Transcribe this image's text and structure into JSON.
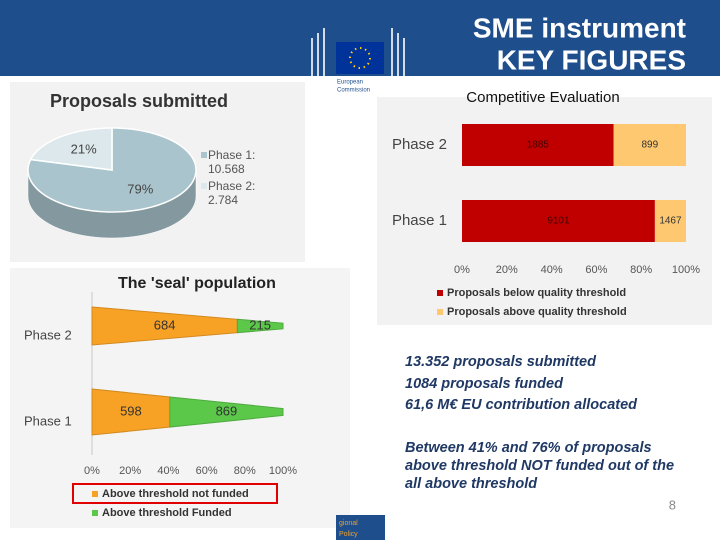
{
  "header": {
    "title_lines": [
      "SME instrument",
      "KEY FIGURES"
    ],
    "logo_text": [
      "European",
      "Commission"
    ]
  },
  "chart_data": [
    {
      "type": "pie",
      "title": "Proposals submitted",
      "categories": [
        "Phase 1: 10.568",
        "Phase 2: 2.784"
      ],
      "values": [
        79,
        21
      ],
      "value_labels": [
        "79%",
        "21%"
      ],
      "colors": [
        "#a9c4cc",
        "#dce8ec"
      ],
      "legend": "right"
    },
    {
      "type": "bar",
      "orientation": "horizontal",
      "stack": "percent",
      "title": "Competitive Evaluation",
      "categories": [
        "Phase 2",
        "Phase 1"
      ],
      "series": [
        {
          "name": "Proposals below quality threshold",
          "color": "#c00000",
          "values": [
            1885,
            9101
          ]
        },
        {
          "name": "Proposals above quality threshold",
          "color": "#fdc870",
          "values": [
            899,
            1467
          ]
        }
      ],
      "xlim": [
        0,
        100
      ],
      "xticks": [
        {
          "value": 0,
          "label": "0%"
        },
        {
          "value": 20,
          "label": "20%"
        },
        {
          "value": 40,
          "label": "40%"
        },
        {
          "value": 60,
          "label": "60%"
        },
        {
          "value": 80,
          "label": "80%"
        },
        {
          "value": 100,
          "label": "100%"
        }
      ],
      "legend": "bottom"
    },
    {
      "type": "cone",
      "orientation": "horizontal",
      "stack": "percent",
      "title": "The 'seal' population",
      "categories": [
        "Phase 2",
        "Phase 1"
      ],
      "series": [
        {
          "name": "Above threshold not funded",
          "color": "#f7a125",
          "values": [
            684,
            598
          ]
        },
        {
          "name": "Above threshold Funded",
          "color": "#5cc84a",
          "values": [
            215,
            869
          ]
        }
      ],
      "xlim": [
        0,
        100
      ],
      "xticks": [
        {
          "value": 0,
          "label": "0%"
        },
        {
          "value": 20,
          "label": "20%"
        },
        {
          "value": 40,
          "label": "40%"
        },
        {
          "value": 60,
          "label": "60%"
        },
        {
          "value": 80,
          "label": "80%"
        },
        {
          "value": 100,
          "label": "100%"
        }
      ],
      "legend": "bottom"
    }
  ],
  "highlights": [
    "13.352 proposals submitted",
    "1084 proposals funded",
    "61,6 M€ EU contribution allocated"
  ],
  "note": "Between 41% and 76% of proposals above threshold NOT funded out of the all above threshold",
  "footer": {
    "department": [
      "gional",
      "Policy"
    ],
    "page_number": 8
  }
}
